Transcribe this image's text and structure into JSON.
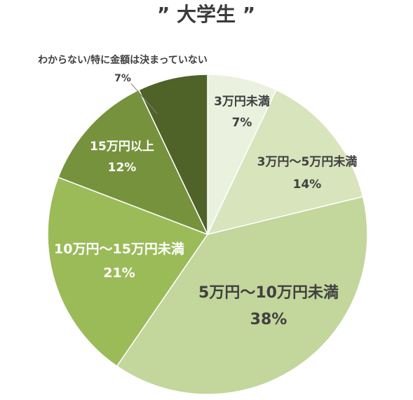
{
  "chart_data": {
    "type": "pie",
    "title": "” 大学生 ”",
    "categories": [
      "3万円未満",
      "3万円～5万円未満",
      "5万円～10万円未満",
      "10万円～15万円未満",
      "15万円以上",
      "わからない/特に金額は決まっていない"
    ],
    "values": [
      7,
      14,
      38,
      21,
      12,
      7
    ],
    "value_labels": [
      "7%",
      "14%",
      "38%",
      "21%",
      "12%",
      "7%"
    ],
    "colors": [
      "#eaf1de",
      "#d7e4bc",
      "#c3d69b",
      "#9bbb59",
      "#76923c",
      "#4f6228"
    ],
    "label_colors": [
      "#404040",
      "#404040",
      "#404040",
      "#ffffff",
      "#ffffff",
      "#404040"
    ],
    "start_angle_deg": 0,
    "direction": "clockwise",
    "legend": "none"
  }
}
